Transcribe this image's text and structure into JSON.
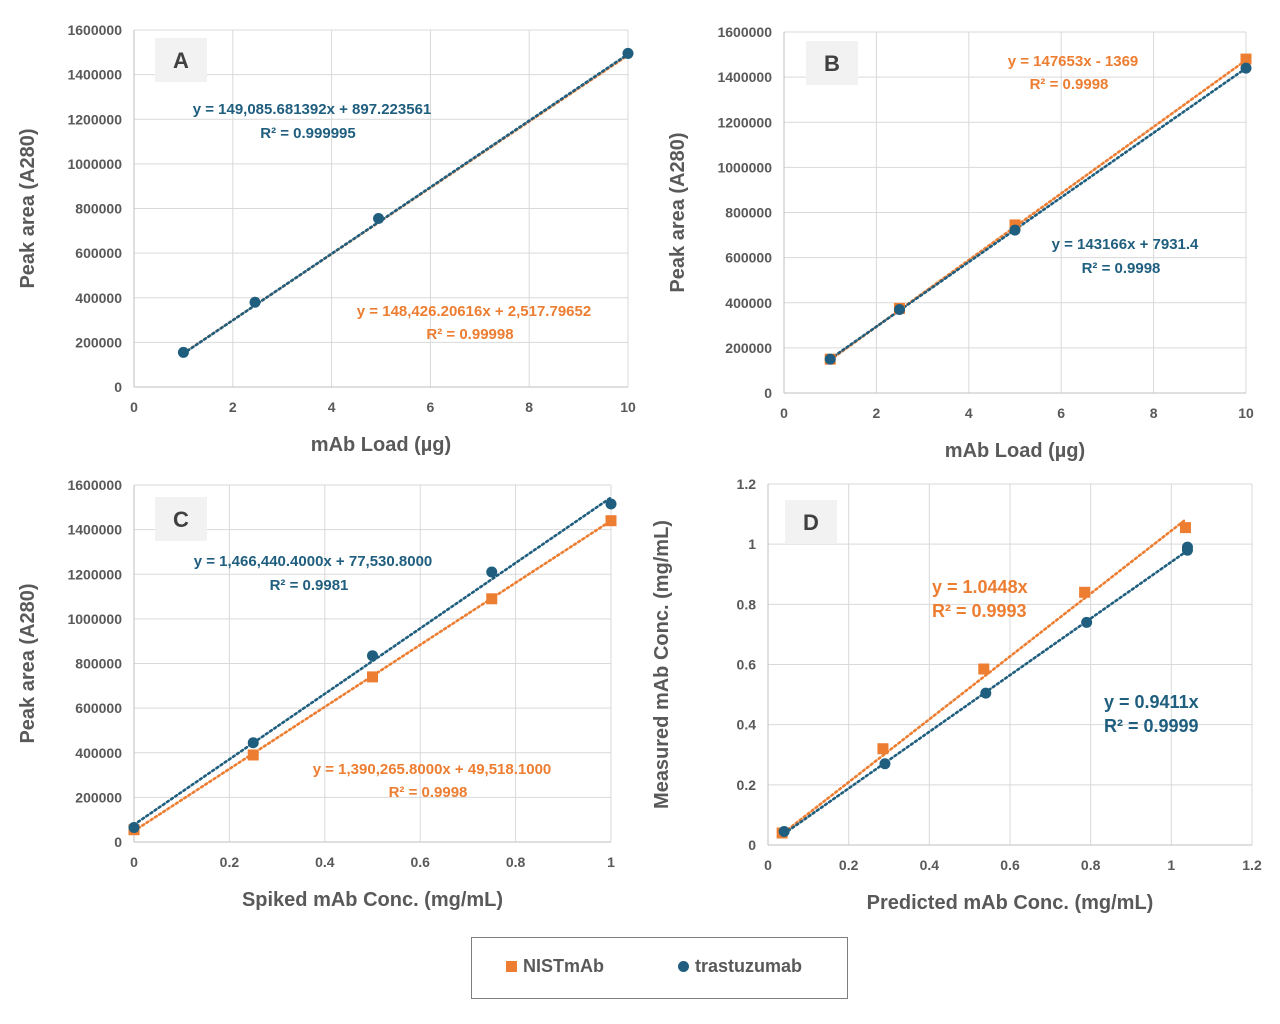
{
  "colors": {
    "nist": "#ED7D31",
    "tras": "#1F5E7E",
    "grid": "#d9d9d9",
    "axis": "#595959",
    "label_bg": "#f2f2f2"
  },
  "legend": {
    "nist": "NISTmAb",
    "tras": "trastuzumab"
  },
  "chart_data": [
    {
      "type": "scatter",
      "panel": "A",
      "xlabel": "mAb Load (µg)",
      "ylabel": "Peak area (A280)",
      "xlim": [
        0,
        10
      ],
      "ylim": [
        0,
        1600000
      ],
      "xticks": [
        0,
        2,
        4,
        6,
        8,
        10
      ],
      "xtick_labels": [
        "0",
        "2",
        "4",
        "6",
        "8",
        "10"
      ],
      "yticks": [
        0,
        200000,
        400000,
        600000,
        800000,
        1000000,
        1200000,
        1400000,
        1600000
      ],
      "ytick_labels": [
        "0",
        "200000",
        "400000",
        "600000",
        "800000",
        "1000000",
        "1200000",
        "1400000",
        "1600000"
      ],
      "series": [
        {
          "name": "NISTmAb",
          "marker": "square",
          "x": [
            1,
            2.5,
            5,
            10
          ],
          "y": [
            150000,
            374000,
            745000,
            1486000
          ],
          "trend": {
            "slope": 148426.20616,
            "intercept": 2517.79652
          },
          "equation": "y = 148,426.20616x + 2,517.79652",
          "r2": "R² = 0.99998",
          "draw_markers": false
        },
        {
          "name": "trastuzumab",
          "marker": "circle",
          "x": [
            1,
            2.45,
            4.95,
            10
          ],
          "y": [
            155000,
            380000,
            755000,
            1495000
          ],
          "trend": {
            "slope": 149085.681392,
            "intercept": 897.223561
          },
          "equation": "y = 149,085.681392x + 897.223561",
          "r2": "R² = 0.999995",
          "draw_markers": true
        }
      ]
    },
    {
      "type": "scatter",
      "panel": "B",
      "xlabel": "mAb Load (µg)",
      "ylabel": "Peak area (A280)",
      "xlim": [
        0,
        10
      ],
      "ylim": [
        0,
        1600000
      ],
      "xticks": [
        0,
        2,
        4,
        6,
        8,
        10
      ],
      "xtick_labels": [
        "0",
        "2",
        "4",
        "6",
        "8",
        "10"
      ],
      "yticks": [
        0,
        200000,
        400000,
        600000,
        800000,
        1000000,
        1200000,
        1400000,
        1600000
      ],
      "ytick_labels": [
        "0",
        "200000",
        "400000",
        "600000",
        "800000",
        "1000000",
        "1200000",
        "1400000",
        "1600000"
      ],
      "series": [
        {
          "name": "NISTmAb",
          "marker": "square",
          "x": [
            1,
            2.5,
            5,
            10
          ],
          "y": [
            150000,
            375000,
            745000,
            1480000
          ],
          "trend": {
            "slope": 147653,
            "intercept": -1369
          },
          "equation": "y = 147653x - 1369",
          "r2": "R² = 0.9998",
          "draw_markers": true
        },
        {
          "name": "trastuzumab",
          "marker": "circle",
          "x": [
            1,
            2.5,
            5,
            10
          ],
          "y": [
            150000,
            370000,
            722000,
            1440000
          ],
          "trend": {
            "slope": 143166,
            "intercept": 7931.4
          },
          "equation": "y = 143166x + 7931.4",
          "r2": "R² = 0.9998",
          "draw_markers": true
        }
      ]
    },
    {
      "type": "scatter",
      "panel": "C",
      "xlabel": "Spiked mAb Conc. (mg/mL)",
      "ylabel": "Peak area (A280)",
      "xlim": [
        0,
        1
      ],
      "ylim": [
        0,
        1600000
      ],
      "xticks": [
        0,
        0.2,
        0.4,
        0.6,
        0.8,
        1
      ],
      "xtick_labels": [
        "0",
        "0.2",
        "0.4",
        "0.6",
        "0.8",
        "1"
      ],
      "yticks": [
        0,
        200000,
        400000,
        600000,
        800000,
        1000000,
        1200000,
        1400000,
        1600000
      ],
      "ytick_labels": [
        "0",
        "200000",
        "400000",
        "600000",
        "800000",
        "1000000",
        "1200000",
        "1400000",
        "1600000"
      ],
      "series": [
        {
          "name": "NISTmAb",
          "marker": "square",
          "x": [
            0,
            0.25,
            0.5,
            0.75,
            1
          ],
          "y": [
            55000,
            390000,
            740000,
            1090000,
            1440000
          ],
          "trend": {
            "slope": 1390265.8,
            "intercept": 49518.1
          },
          "equation": "y = 1,390,265.8000x + 49,518.1000",
          "r2": "R² = 0.9998",
          "draw_markers": true
        },
        {
          "name": "trastuzumab",
          "marker": "circle",
          "x": [
            0,
            0.25,
            0.5,
            0.75,
            1
          ],
          "y": [
            65000,
            445000,
            835000,
            1210000,
            1515000
          ],
          "trend": {
            "slope": 1466440.4,
            "intercept": 77530.8
          },
          "equation": "y = 1,466,440.4000x + 77,530.8000",
          "r2": "R² = 0.9981",
          "draw_markers": true
        }
      ]
    },
    {
      "type": "scatter",
      "panel": "D",
      "xlabel": "Predicted mAb Conc. (mg/mL)",
      "ylabel": "Measured  mAb Conc. (mg/mL)",
      "xlim": [
        0,
        1.2
      ],
      "ylim": [
        0,
        1.2
      ],
      "xticks": [
        0,
        0.2,
        0.4,
        0.6,
        0.8,
        1,
        1.2
      ],
      "xtick_labels": [
        "0",
        "0.2",
        "0.4",
        "0.6",
        "0.8",
        "1",
        "1.2"
      ],
      "yticks": [
        0,
        0.2,
        0.4,
        0.6,
        0.8,
        1,
        1.2
      ],
      "ytick_labels": [
        "0",
        "0.2",
        "0.4",
        "0.6",
        "0.8",
        "1",
        "1.2"
      ],
      "series": [
        {
          "name": "NISTmAb",
          "marker": "square",
          "x": [
            0.035,
            0.285,
            0.535,
            0.785,
            1.035
          ],
          "y": [
            0.04,
            0.32,
            0.585,
            0.84,
            1.055
          ],
          "trend": {
            "slope": 1.0448,
            "intercept": 0,
            "x0": 0.03
          },
          "equation": "y = 1.0448x",
          "r2": "R² = 0.9993",
          "draw_markers": true
        },
        {
          "name": "trastuzumab",
          "marker": "circle",
          "x": [
            0.04,
            0.29,
            0.54,
            0.79,
            1.04,
            1.04
          ],
          "y": [
            0.045,
            0.27,
            0.505,
            0.74,
            0.98,
            0.99
          ],
          "trend": {
            "slope": 0.9411,
            "intercept": 0,
            "x0": 0.04
          },
          "equation": "y = 0.9411x",
          "r2": "R² = 0.9999",
          "draw_markers": true
        }
      ]
    }
  ]
}
